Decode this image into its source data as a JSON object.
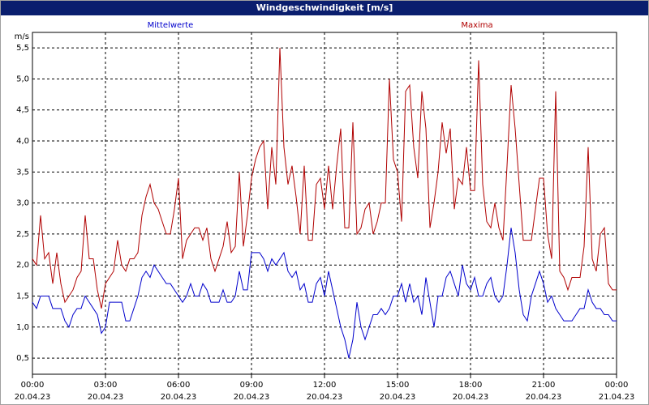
{
  "chart_data": {
    "type": "line",
    "title": "Windgeschwindigkeit [m/s]",
    "y_unit": "m/s",
    "xlim": [
      0,
      1440
    ],
    "ylim": [
      0.24,
      5.75
    ],
    "grid": true,
    "xticks": [
      {
        "value": 0,
        "label": [
          "00:00",
          "20.04.23"
        ]
      },
      {
        "value": 180,
        "label": [
          "03:00",
          "20.04.23"
        ]
      },
      {
        "value": 360,
        "label": [
          "06:00",
          "20.04.23"
        ]
      },
      {
        "value": 540,
        "label": [
          "09:00",
          "20.04.23"
        ]
      },
      {
        "value": 720,
        "label": [
          "12:00",
          "20.04.23"
        ]
      },
      {
        "value": 900,
        "label": [
          "15:00",
          "20.04.23"
        ]
      },
      {
        "value": 1080,
        "label": [
          "18:00",
          "20.04.23"
        ]
      },
      {
        "value": 1260,
        "label": [
          "21:00",
          "20.04.23"
        ]
      },
      {
        "value": 1440,
        "label": [
          "00:00",
          "21.04.23"
        ]
      }
    ],
    "yticks": [
      {
        "value": 0.5,
        "label": "0,5"
      },
      {
        "value": 1.0,
        "label": "1,0"
      },
      {
        "value": 1.5,
        "label": "1,5"
      },
      {
        "value": 2.0,
        "label": "2,0"
      },
      {
        "value": 2.5,
        "label": "2,5"
      },
      {
        "value": 3.0,
        "label": "3,0"
      },
      {
        "value": 3.5,
        "label": "3,5"
      },
      {
        "value": 4.0,
        "label": "4,0"
      },
      {
        "value": 4.5,
        "label": "4,5"
      },
      {
        "value": 5.0,
        "label": "5,0"
      },
      {
        "value": 5.5,
        "label": "5,5"
      }
    ],
    "x": [
      0,
      10,
      20,
      30,
      40,
      50,
      60,
      70,
      80,
      90,
      100,
      110,
      120,
      130,
      140,
      150,
      160,
      170,
      180,
      190,
      200,
      210,
      220,
      230,
      240,
      250,
      260,
      270,
      280,
      290,
      300,
      310,
      320,
      330,
      340,
      350,
      360,
      370,
      380,
      390,
      400,
      410,
      420,
      430,
      440,
      450,
      460,
      470,
      480,
      490,
      500,
      510,
      520,
      530,
      540,
      550,
      560,
      570,
      580,
      590,
      600,
      610,
      620,
      630,
      640,
      650,
      660,
      670,
      680,
      690,
      700,
      710,
      720,
      730,
      740,
      750,
      760,
      770,
      780,
      790,
      800,
      810,
      820,
      830,
      840,
      850,
      860,
      870,
      880,
      890,
      900,
      910,
      920,
      930,
      940,
      950,
      960,
      970,
      980,
      990,
      1000,
      1010,
      1020,
      1030,
      1040,
      1050,
      1060,
      1070,
      1080,
      1090,
      1100,
      1110,
      1120,
      1130,
      1140,
      1150,
      1160,
      1170,
      1180,
      1190,
      1200,
      1210,
      1220,
      1230,
      1240,
      1250,
      1260,
      1270,
      1280,
      1290,
      1300,
      1310,
      1320,
      1330,
      1340,
      1350,
      1360,
      1370,
      1380,
      1390,
      1400,
      1410,
      1420,
      1430,
      1440
    ],
    "series": [
      {
        "name": "Mittelwerte",
        "color": "#0000cc",
        "values": [
          1.4,
          1.3,
          1.5,
          1.5,
          1.5,
          1.3,
          1.3,
          1.3,
          1.1,
          1.0,
          1.2,
          1.3,
          1.3,
          1.5,
          1.4,
          1.3,
          1.2,
          0.9,
          1.0,
          1.4,
          1.4,
          1.4,
          1.4,
          1.1,
          1.1,
          1.3,
          1.5,
          1.8,
          1.9,
          1.8,
          2.0,
          1.9,
          1.8,
          1.7,
          1.7,
          1.6,
          1.5,
          1.4,
          1.5,
          1.7,
          1.5,
          1.5,
          1.7,
          1.6,
          1.4,
          1.4,
          1.4,
          1.6,
          1.4,
          1.4,
          1.5,
          1.9,
          1.6,
          1.6,
          2.2,
          2.2,
          2.2,
          2.1,
          1.9,
          2.1,
          2.0,
          2.1,
          2.2,
          1.9,
          1.8,
          1.9,
          1.6,
          1.7,
          1.4,
          1.4,
          1.7,
          1.8,
          1.5,
          1.9,
          1.6,
          1.3,
          1.0,
          0.8,
          0.5,
          0.8,
          1.4,
          1.0,
          0.8,
          1.0,
          1.2,
          1.2,
          1.3,
          1.2,
          1.3,
          1.5,
          1.5,
          1.7,
          1.4,
          1.7,
          1.4,
          1.5,
          1.2,
          1.8,
          1.4,
          1.0,
          1.5,
          1.5,
          1.8,
          1.9,
          1.7,
          1.5,
          2.0,
          1.7,
          1.6,
          1.8,
          1.5,
          1.5,
          1.7,
          1.8,
          1.5,
          1.4,
          1.5,
          2.0,
          2.6,
          2.2,
          1.6,
          1.2,
          1.1,
          1.5,
          1.7,
          1.9,
          1.7,
          1.4,
          1.5,
          1.3,
          1.2,
          1.1,
          1.1,
          1.1,
          1.2,
          1.3,
          1.3,
          1.6,
          1.4,
          1.3,
          1.3,
          1.2,
          1.2,
          1.1,
          1.1
        ]
      },
      {
        "name": "Maxima",
        "color": "#b00000",
        "values": [
          2.1,
          2.0,
          2.8,
          2.1,
          2.2,
          1.7,
          2.2,
          1.7,
          1.4,
          1.5,
          1.6,
          1.8,
          1.9,
          2.8,
          2.1,
          2.1,
          1.6,
          1.3,
          1.7,
          1.8,
          1.9,
          2.4,
          2.0,
          1.9,
          2.1,
          2.1,
          2.2,
          2.8,
          3.1,
          3.3,
          3.0,
          2.9,
          2.7,
          2.5,
          2.5,
          2.9,
          3.4,
          2.1,
          2.4,
          2.5,
          2.6,
          2.6,
          2.4,
          2.6,
          2.1,
          1.9,
          2.1,
          2.3,
          2.7,
          2.2,
          2.3,
          3.5,
          2.3,
          2.8,
          3.4,
          3.7,
          3.9,
          4.0,
          2.9,
          3.9,
          3.3,
          5.5,
          3.9,
          3.3,
          3.6,
          3.1,
          2.5,
          3.6,
          2.4,
          2.4,
          3.3,
          3.4,
          2.9,
          3.6,
          2.9,
          3.6,
          4.2,
          2.6,
          2.6,
          4.3,
          2.5,
          2.6,
          2.9,
          3.0,
          2.5,
          2.7,
          3.0,
          3.0,
          5.0,
          3.7,
          3.5,
          2.7,
          4.8,
          4.9,
          3.9,
          3.4,
          4.8,
          4.2,
          2.6,
          3.0,
          3.5,
          4.3,
          3.8,
          4.2,
          2.9,
          3.4,
          3.3,
          3.9,
          3.2,
          3.2,
          5.3,
          3.3,
          2.7,
          2.6,
          3.0,
          2.6,
          2.4,
          3.6,
          4.9,
          4.2,
          3.3,
          2.4,
          2.4,
          2.4,
          2.9,
          3.4,
          3.4,
          2.5,
          2.1,
          4.8,
          1.9,
          1.8,
          1.6,
          1.8,
          1.8,
          1.8,
          2.3,
          3.9,
          2.1,
          1.9,
          2.5,
          2.6,
          1.7,
          1.6,
          1.6
        ]
      }
    ]
  }
}
